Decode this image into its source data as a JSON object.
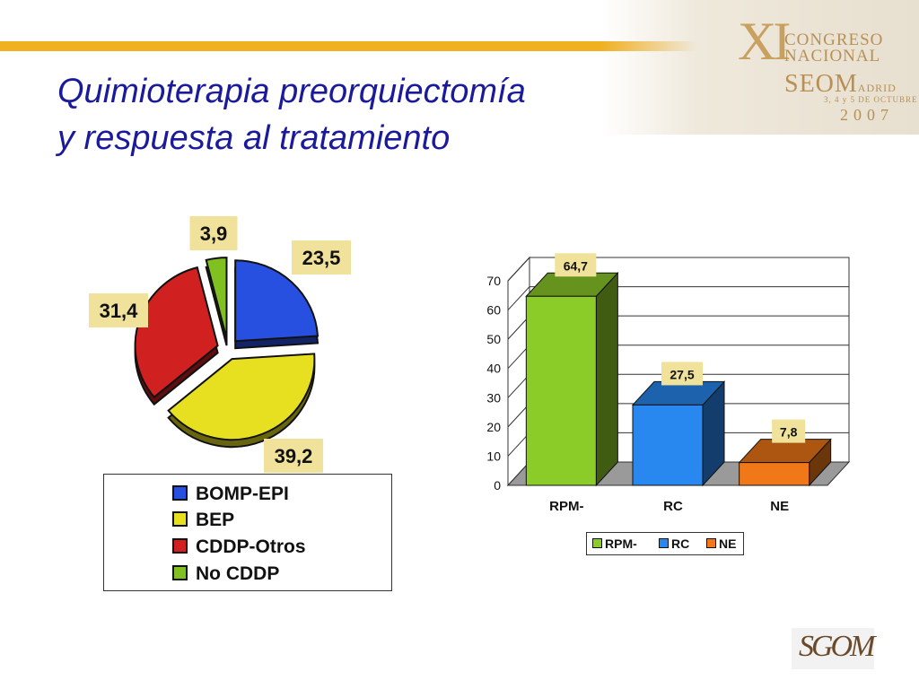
{
  "slide": {
    "title_line1": "Quimioterapia preorquiectomía",
    "title_line2": "y respuesta al tratamiento"
  },
  "congress_logo": {
    "roman": "XI",
    "line1": "CONGRESO",
    "line2": "NACIONAL",
    "line3": "SEOM",
    "line3b": "ADRID",
    "dates": "3, 4 y 5 DE OCTUBRE",
    "year": "2007"
  },
  "footer_logo": {
    "text": "SGOM"
  },
  "colors": {
    "accent_bar": "#f0b020",
    "title": "#1a1a9a",
    "label_box": "#f0e29a"
  },
  "chart_data": [
    {
      "type": "pie",
      "title": "",
      "exploded": true,
      "slices": [
        {
          "name": "BOMP-EPI",
          "value": 23.5,
          "label": "23,5",
          "color": "#2850e0"
        },
        {
          "name": "BEP",
          "value": 39.2,
          "label": "39,2",
          "color": "#e6e020"
        },
        {
          "name": "CDDP-Otros",
          "value": 31.4,
          "label": "31,4",
          "color": "#d02020"
        },
        {
          "name": "No CDDP",
          "value": 3.9,
          "label": "3,9",
          "color": "#80c020"
        }
      ],
      "legend": {
        "placement": "bottom",
        "entries": [
          "BOMP-EPI",
          "BEP",
          "CDDP-Otros",
          "No CDDP"
        ]
      }
    },
    {
      "type": "bar",
      "style": "3d",
      "title": "",
      "xlabel": "",
      "ylabel": "",
      "categories": [
        "RPM-",
        "RC",
        "NE"
      ],
      "values": [
        64.7,
        27.5,
        7.8
      ],
      "data_labels": [
        "64,7",
        "27,5",
        "7,8"
      ],
      "colors": [
        "#8ccc28",
        "#2888f0",
        "#f07818"
      ],
      "ylim": [
        0,
        70
      ],
      "yticks": [
        "0",
        "10",
        "20",
        "30",
        "40",
        "50",
        "60",
        "70"
      ],
      "grid": true,
      "legend": {
        "placement": "bottom",
        "entries": [
          "RPM-",
          "RC",
          "NE"
        ]
      }
    }
  ]
}
